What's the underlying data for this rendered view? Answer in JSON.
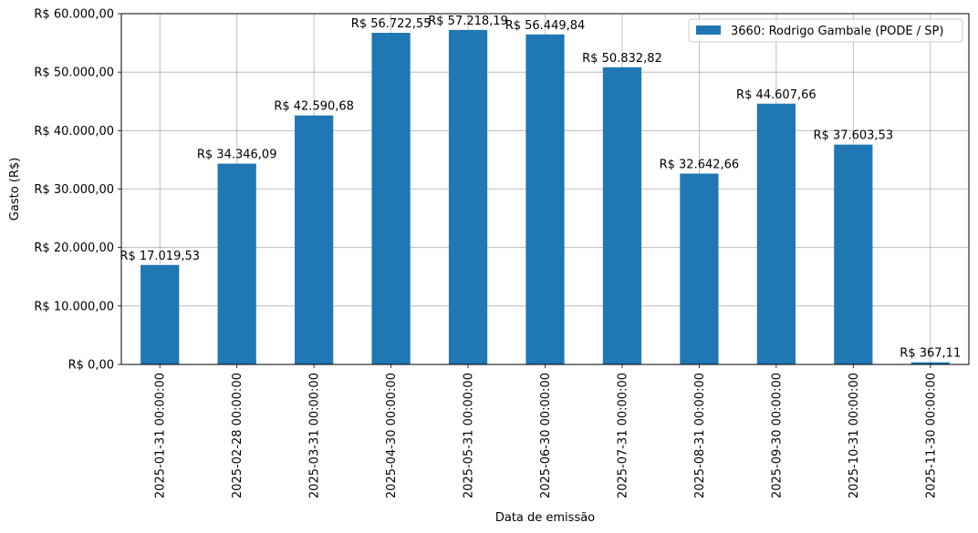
{
  "chart_data": {
    "type": "bar",
    "xlabel": "Data de emissão",
    "ylabel": "Gasto (R$)",
    "ylim": [
      0,
      60000
    ],
    "yticks": [
      0,
      10000,
      20000,
      30000,
      40000,
      50000,
      60000
    ],
    "ytick_labels": [
      "R$ 0,00",
      "R$ 10.000,00",
      "R$ 20.000,00",
      "R$ 30.000,00",
      "R$ 40.000,00",
      "R$ 50.000,00",
      "R$ 60.000,00"
    ],
    "grid": true,
    "legend_position": "top-right",
    "categories": [
      "2025-01-31 00:00:00",
      "2025-02-28 00:00:00",
      "2025-03-31 00:00:00",
      "2025-04-30 00:00:00",
      "2025-05-31 00:00:00",
      "2025-06-30 00:00:00",
      "2025-07-31 00:00:00",
      "2025-08-31 00:00:00",
      "2025-09-30 00:00:00",
      "2025-10-31 00:00:00",
      "2025-11-30 00:00:00"
    ],
    "series": [
      {
        "name": "3660: Rodrigo Gambale (PODE / SP)",
        "color": "#1f77b4",
        "values": [
          17019.53,
          34346.09,
          42590.68,
          56722.55,
          57218.19,
          56449.84,
          50832.82,
          32642.66,
          44607.66,
          37603.53,
          367.11
        ],
        "data_labels": [
          "R$ 17.019,53",
          "R$ 34.346,09",
          "R$ 42.590,68",
          "R$ 56.722,55",
          "R$ 57.218,19",
          "R$ 56.449,84",
          "R$ 50.832,82",
          "R$ 32.642,66",
          "R$ 44.607,66",
          "R$ 37.603,53",
          "R$ 367,11"
        ]
      }
    ]
  }
}
